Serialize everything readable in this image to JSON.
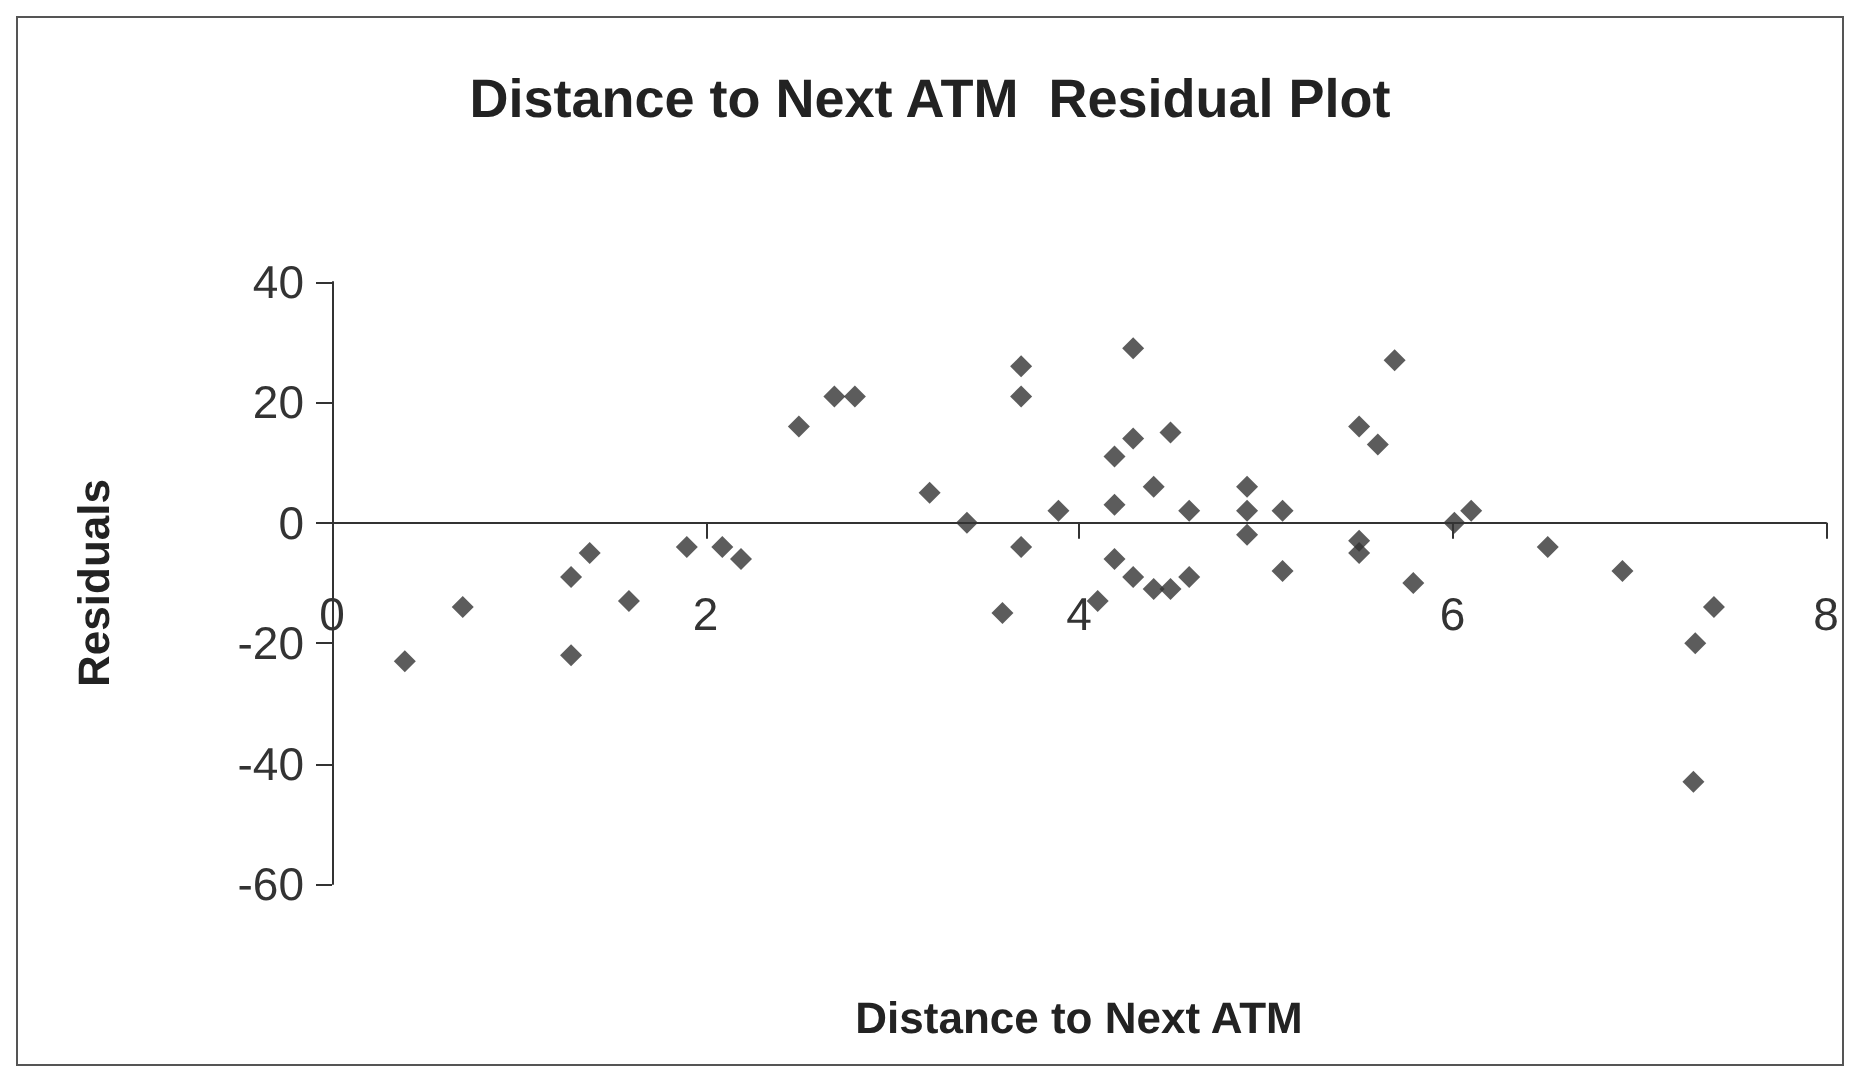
{
  "chart_data": {
    "type": "scatter",
    "title": "Distance to Next ATM  Residual Plot",
    "xlabel": "Distance to Next ATM",
    "ylabel": "Residuals",
    "x": [
      0.39,
      0.7,
      1.28,
      1.38,
      1.28,
      1.59,
      1.9,
      2.09,
      2.19,
      2.5,
      2.69,
      2.8,
      3.2,
      3.4,
      3.69,
      3.69,
      3.69,
      3.59,
      3.89,
      4.1,
      4.19,
      4.19,
      4.19,
      4.29,
      4.29,
      4.29,
      4.4,
      4.4,
      4.49,
      4.49,
      4.59,
      4.59,
      4.9,
      4.9,
      4.9,
      5.09,
      5.09,
      5.5,
      5.6,
      5.69,
      5.5,
      5.5,
      5.79,
      6.01,
      6.1,
      6.51,
      6.91,
      7.4,
      7.3,
      7.29
    ],
    "values": [
      -23,
      -14,
      -9,
      -5,
      -22,
      -13,
      -4,
      -4,
      -6,
      16,
      21,
      21,
      5,
      0,
      26,
      21,
      -4,
      -15,
      2,
      -13,
      -6,
      3,
      11,
      14,
      29,
      -9,
      6,
      -11,
      -11,
      15,
      2,
      -9,
      6,
      2,
      -2,
      2,
      -8,
      16,
      13,
      27,
      -3,
      -5,
      -10,
      0,
      2,
      -4,
      -8,
      -14,
      -20,
      -43
    ],
    "color": "#333333",
    "marker": "diamond",
    "grid": false,
    "legend": false,
    "xlim": [
      0,
      8
    ],
    "xticks": [
      0,
      2,
      4,
      6,
      8
    ],
    "ylim": [
      -60,
      40
    ],
    "yticks": [
      -60,
      -40,
      -20,
      0,
      20,
      40
    ]
  }
}
